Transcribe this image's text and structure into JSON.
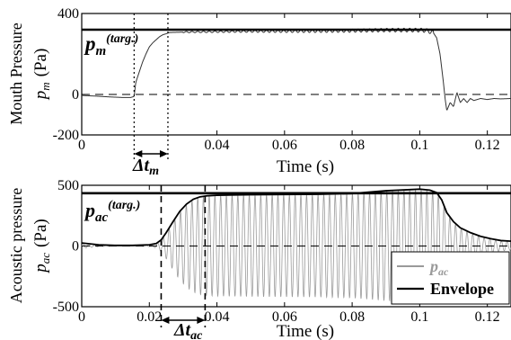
{
  "chart_data": [
    {
      "type": "line",
      "ylabel": "Mouth Pressure",
      "ylabel_symbol": "p",
      "ylabel_symbol_sub": "m",
      "ylabel_unit": "(Pa)",
      "xlabel": "Time (s)",
      "xlim": [
        0,
        0.127
      ],
      "ylim": [
        -200,
        400
      ],
      "x_ticks": [
        0,
        0.04,
        0.06,
        0.08,
        0.1,
        0.12
      ],
      "x_tick_labels": [
        "0",
        "0.04",
        "0.06",
        "0.08",
        "0.1",
        "0.12"
      ],
      "y_ticks": [
        -200,
        0,
        400
      ],
      "y_tick_labels": [
        "-200",
        "0",
        "400"
      ],
      "target": {
        "value": 320,
        "label": "p",
        "label_sub": "m",
        "label_sup": "(targ.)"
      },
      "zero_line": 0,
      "markers": {
        "t_start": 0.0155,
        "t_end": 0.0255,
        "label": "Δt",
        "label_sub": "m"
      },
      "series": [
        {
          "x": [
            0,
            0.004,
            0.008,
            0.012,
            0.0145,
            0.0155,
            0.016,
            0.017,
            0.018,
            0.019,
            0.02,
            0.021,
            0.022,
            0.023,
            0.024,
            0.025,
            0.026,
            0.03,
            0.04,
            0.05,
            0.06,
            0.07,
            0.08,
            0.09,
            0.1,
            0.102,
            0.104,
            0.105,
            0.106,
            0.107,
            0.1075,
            0.108,
            0.109,
            0.11,
            0.111,
            0.112,
            0.113,
            0.114,
            0.115,
            0.116,
            0.118,
            0.12,
            0.122,
            0.124,
            0.127
          ],
          "y": [
            -5,
            -8,
            -12,
            -15,
            -15,
            -10,
            60,
            110,
            160,
            200,
            235,
            255,
            270,
            285,
            295,
            300,
            306,
            308,
            310,
            312,
            312,
            313,
            315,
            318,
            318,
            316,
            305,
            280,
            200,
            60,
            -20,
            -80,
            -40,
            -60,
            10,
            -40,
            -20,
            -40,
            -20,
            -30,
            -20,
            -25,
            -20,
            -22,
            -20
          ]
        }
      ]
    },
    {
      "type": "line",
      "ylabel": "Acoustic pressure",
      "ylabel_symbol": "p",
      "ylabel_symbol_sub": "ac",
      "ylabel_unit": "(Pa)",
      "xlabel": "Time (s)",
      "xlim": [
        0,
        0.127
      ],
      "ylim": [
        -500,
        500
      ],
      "x_ticks": [
        0,
        0.02,
        0.04,
        0.06,
        0.08,
        0.1,
        0.12
      ],
      "x_tick_labels": [
        "0",
        "0.02",
        "0.04",
        "0.06",
        "0.08",
        "0.1",
        "0.12"
      ],
      "y_ticks": [
        -500,
        0,
        500
      ],
      "y_tick_labels": [
        "-500",
        "0",
        "500"
      ],
      "target": {
        "value": 435,
        "label": "p",
        "label_sub": "ac",
        "label_sup": "(targ.)"
      },
      "zero_line": 0,
      "markers": {
        "t_start": 0.0235,
        "t_end": 0.0365,
        "label": "Δt",
        "label_sub": "ac"
      },
      "oscillation_frequency_hz": 590,
      "legend": {
        "position": "bottom-right",
        "entries": [
          {
            "label": "p",
            "label_sub": "ac",
            "color": "#9a9a9a"
          },
          {
            "label": "Envelope",
            "color": "#000000"
          }
        ]
      },
      "series": [
        {
          "name": "Envelope",
          "x": [
            0,
            0.005,
            0.01,
            0.015,
            0.02,
            0.022,
            0.0235,
            0.025,
            0.027,
            0.029,
            0.031,
            0.033,
            0.035,
            0.037,
            0.04,
            0.05,
            0.06,
            0.07,
            0.08,
            0.09,
            0.1,
            0.103,
            0.105,
            0.1065,
            0.108,
            0.11,
            0.112,
            0.115,
            0.118,
            0.121,
            0.124,
            0.127
          ],
          "y": [
            25,
            10,
            5,
            5,
            10,
            20,
            50,
            110,
            200,
            285,
            345,
            385,
            405,
            413,
            418,
            422,
            424,
            426,
            432,
            455,
            468,
            460,
            440,
            380,
            275,
            200,
            150,
            110,
            80,
            60,
            45,
            40
          ]
        }
      ]
    }
  ]
}
